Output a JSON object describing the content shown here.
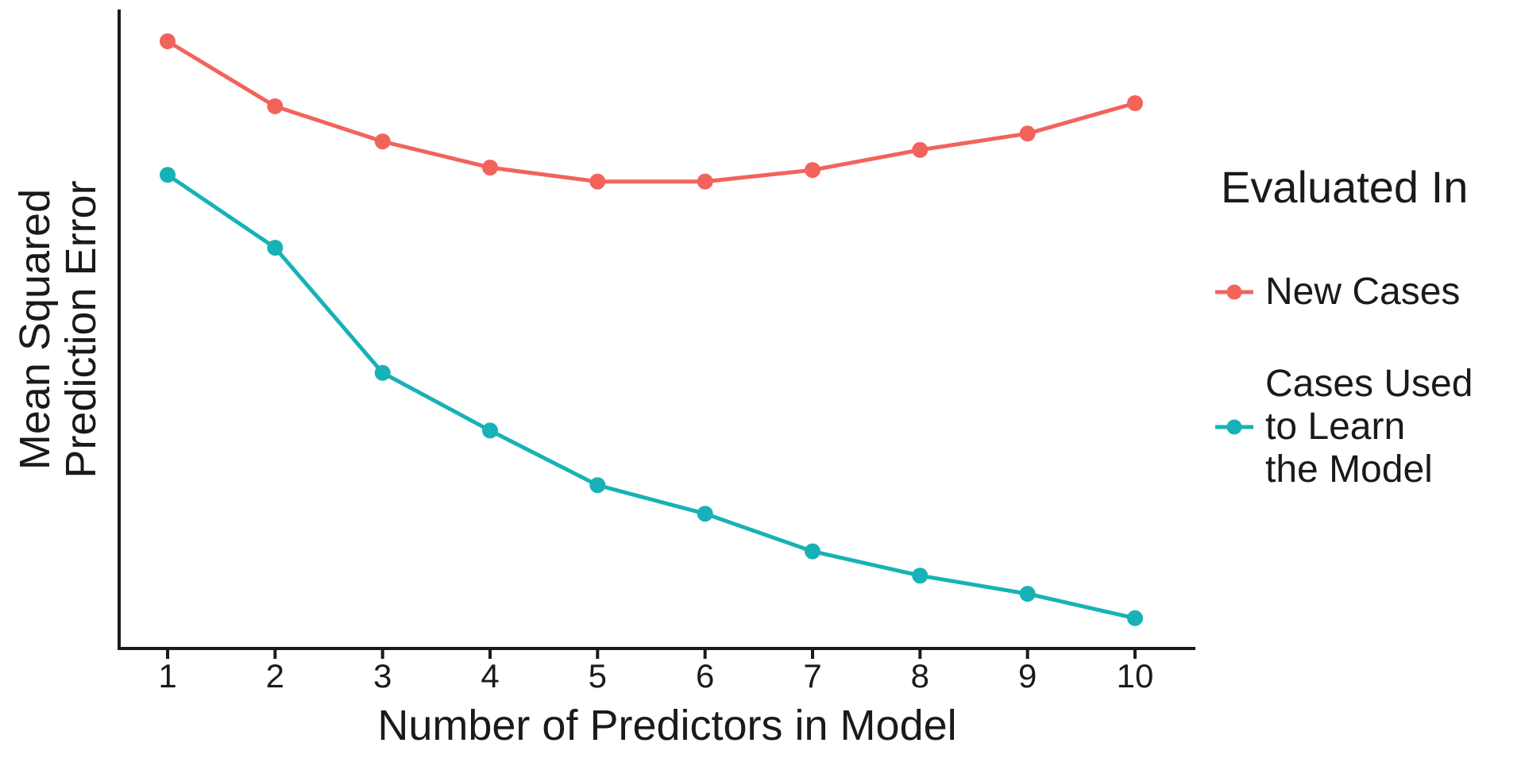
{
  "colors": {
    "background": "#ffffff",
    "axis": "#1a1a1a",
    "text": "#1a1a1a"
  },
  "chart_data": {
    "type": "line",
    "title": "",
    "xlabel": "Number of Predictors in Model",
    "ylabel": "Mean Squared Prediction Error",
    "ylabel_lines": [
      "Mean Squared",
      "Prediction Error"
    ],
    "x": [
      1,
      2,
      3,
      4,
      5,
      6,
      7,
      8,
      9,
      10
    ],
    "x_tick_labels": [
      "1",
      "2",
      "3",
      "4",
      "5",
      "6",
      "7",
      "8",
      "9",
      "10"
    ],
    "y_axis": {
      "tick_labels_shown": false,
      "units": "relative (unlabeled axis)",
      "range": [
        0,
        105
      ]
    },
    "xlim": [
      0.55,
      10.55
    ],
    "grid": false,
    "legend": {
      "title": "Evaluated In",
      "position": "right"
    },
    "series": [
      {
        "name": "New Cases",
        "legend_lines": [
          "New Cases"
        ],
        "color": "#F2635C",
        "marker": "circle",
        "values": [
          100.0,
          89.3,
          83.5,
          79.2,
          76.9,
          76.9,
          78.8,
          82.1,
          84.8,
          89.8
        ]
      },
      {
        "name": "Cases Used to Learn the Model",
        "legend_lines": [
          "Cases Used",
          "to Learn",
          "the Model"
        ],
        "color": "#17B2B6",
        "marker": "circle",
        "values": [
          78.0,
          66.0,
          45.4,
          35.9,
          26.9,
          22.2,
          16.0,
          12.0,
          9.0,
          5.0
        ]
      }
    ]
  }
}
